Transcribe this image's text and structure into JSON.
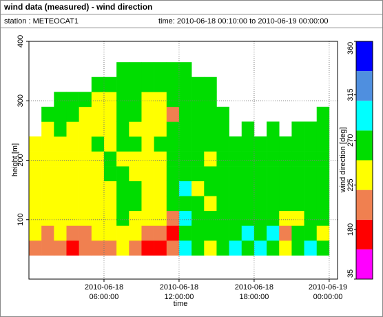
{
  "window_title": "wind data (measured) - wind direction",
  "station": "station : METEOCAT1",
  "time_range": "time: 2010-06-18 00:10:00 to 2010-06-19 00:00:00",
  "chart_data": {
    "type": "heatmap",
    "xlabel": "time",
    "ylabel": "height [m]",
    "xlim": [
      "2010-06-18 00:00:00",
      "2010-06-19 00:40:00"
    ],
    "xticks": [
      {
        "value": "2010-06-18 06:00:00",
        "label": [
          "2010-06-18",
          "06:00:00"
        ]
      },
      {
        "value": "2010-06-18 12:00:00",
        "label": [
          "2010-06-18",
          "12:00:00"
        ]
      },
      {
        "value": "2010-06-18 18:00:00",
        "label": [
          "2010-06-18",
          "18:00:00"
        ]
      },
      {
        "value": "2010-06-19 00:00:00",
        "label": [
          "2010-06-19",
          "00:00:00"
        ]
      }
    ],
    "ylim": [
      0,
      400
    ],
    "yticks": [
      100,
      200,
      300,
      400
    ],
    "grid": true,
    "x_bins": [
      "2010-06-18 00:00:00",
      "2010-06-18 01:00:00",
      "2010-06-18 02:00:00",
      "2010-06-18 03:00:00",
      "2010-06-18 04:00:00",
      "2010-06-18 05:00:00",
      "2010-06-18 06:00:00",
      "2010-06-18 07:00:00",
      "2010-06-18 08:00:00",
      "2010-06-18 09:00:00",
      "2010-06-18 10:00:00",
      "2010-06-18 11:00:00",
      "2010-06-18 12:00:00",
      "2010-06-18 13:00:00",
      "2010-06-18 14:00:00",
      "2010-06-18 15:00:00",
      "2010-06-18 16:00:00",
      "2010-06-18 17:00:00",
      "2010-06-18 18:00:00",
      "2010-06-18 19:00:00",
      "2010-06-18 20:00:00",
      "2010-06-18 21:00:00",
      "2010-06-18 22:00:00",
      "2010-06-18 23:00:00",
      "2010-06-19 00:00:00"
    ],
    "y_bins": [
      40,
      65,
      90,
      115,
      140,
      165,
      190,
      215,
      240,
      265,
      290,
      315,
      340,
      365
    ],
    "z": [
      [
        205,
        235,
        235,
        235,
        235,
        235,
        235,
        235,
        null,
        null,
        null,
        null,
        null
      ],
      [
        205,
        205,
        235,
        235,
        235,
        235,
        235,
        235,
        235,
        265,
        null,
        null,
        null
      ],
      [
        205,
        235,
        235,
        235,
        235,
        235,
        235,
        235,
        265,
        265,
        265,
        null,
        null
      ],
      [
        180,
        205,
        235,
        235,
        235,
        235,
        235,
        235,
        235,
        265,
        265,
        null,
        null
      ],
      [
        205,
        205,
        235,
        235,
        235,
        235,
        235,
        235,
        235,
        235,
        265,
        null,
        null
      ],
      [
        205,
        235,
        235,
        235,
        235,
        235,
        235,
        265,
        235,
        235,
        235,
        265,
        null
      ],
      [
        205,
        235,
        235,
        235,
        235,
        265,
        265,
        235,
        235,
        235,
        235,
        265,
        null
      ],
      [
        235,
        235,
        265,
        265,
        265,
        265,
        235,
        265,
        265,
        265,
        265,
        265,
        265
      ],
      [
        205,
        235,
        235,
        265,
        265,
        235,
        235,
        265,
        235,
        265,
        265,
        265,
        265
      ],
      [
        180,
        205,
        235,
        235,
        235,
        235,
        235,
        235,
        235,
        235,
        235,
        265,
        265
      ],
      [
        180,
        205,
        235,
        235,
        235,
        235,
        235,
        265,
        235,
        235,
        235,
        265,
        265
      ],
      [
        205,
        180,
        205,
        265,
        265,
        265,
        265,
        265,
        265,
        205,
        265,
        265,
        265
      ],
      [
        300,
        265,
        300,
        265,
        300,
        265,
        265,
        265,
        265,
        265,
        265,
        265,
        265
      ],
      [
        265,
        265,
        265,
        265,
        235,
        265,
        265,
        265,
        265,
        265,
        265,
        265,
        null
      ],
      [
        235,
        265,
        265,
        235,
        265,
        265,
        235,
        265,
        265,
        265,
        265,
        265,
        null
      ],
      [
        265,
        265,
        265,
        265,
        265,
        265,
        265,
        265,
        265,
        265,
        null,
        null,
        null
      ],
      [
        300,
        265,
        265,
        265,
        265,
        265,
        265,
        265,
        null,
        null,
        null,
        null,
        null
      ],
      [
        265,
        300,
        265,
        265,
        265,
        265,
        265,
        265,
        265,
        null,
        null,
        null,
        null
      ],
      [
        300,
        265,
        265,
        265,
        265,
        265,
        265,
        265,
        null,
        null,
        null,
        null,
        null
      ],
      [
        265,
        300,
        265,
        265,
        265,
        265,
        265,
        265,
        265,
        null,
        null,
        null,
        null
      ],
      [
        235,
        205,
        235,
        265,
        265,
        265,
        265,
        265,
        null,
        null,
        null,
        null,
        null
      ],
      [
        265,
        265,
        235,
        265,
        265,
        265,
        265,
        265,
        265,
        null,
        null,
        null,
        null
      ],
      [
        300,
        265,
        265,
        265,
        265,
        265,
        265,
        265,
        265,
        null,
        null,
        null,
        null
      ],
      [
        265,
        235,
        265,
        265,
        265,
        265,
        265,
        265,
        265,
        265,
        null,
        null,
        null
      ]
    ],
    "colorbar": {
      "label": "wind direction [deg]",
      "bounds": [
        35,
        160,
        190,
        220,
        250,
        280,
        310,
        335,
        360
      ],
      "colors": [
        "#ff00ff",
        "#ff0000",
        "#f08050",
        "#ffff00",
        "#00dd00",
        "#00ffff",
        "#4f8fdf",
        "#0000ff"
      ],
      "ticks": [
        35,
        180,
        225,
        270,
        315,
        360
      ]
    }
  }
}
